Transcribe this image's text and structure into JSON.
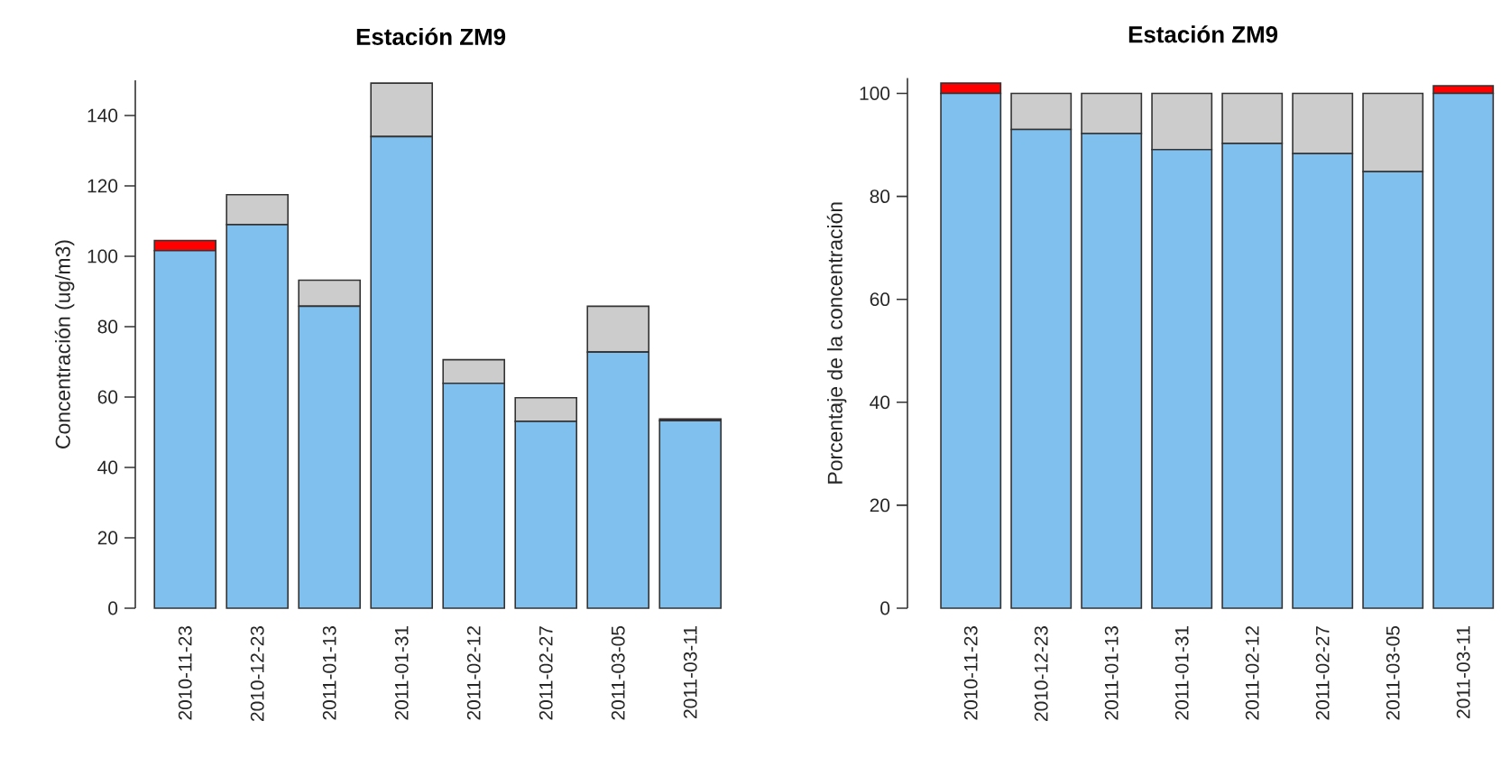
{
  "chart_data": [
    {
      "type": "bar",
      "stacked": true,
      "title": "Estación ZM9",
      "ylabel": "Concentración (ug/m3)",
      "categories": [
        "2010-11-23",
        "2010-12-23",
        "2011-01-13",
        "2011-01-31",
        "2011-02-12",
        "2011-02-27",
        "2011-03-05",
        "2011-03-11"
      ],
      "series": [
        {
          "color": "#80c0ee",
          "values": [
            101.6,
            109.0,
            85.8,
            134.0,
            63.9,
            53.1,
            72.8,
            53.3
          ]
        },
        {
          "color": "#cccccc",
          "values": [
            0,
            8.5,
            7.4,
            15.2,
            6.7,
            6.7,
            13.0,
            0
          ]
        },
        {
          "color": "#ff0000",
          "values": [
            2.9,
            0,
            0,
            0,
            0,
            0,
            0,
            0.5
          ]
        }
      ],
      "ylim": [
        0,
        150
      ],
      "yticks": [
        0,
        20,
        40,
        60,
        80,
        100,
        120,
        140
      ]
    },
    {
      "type": "bar",
      "stacked": true,
      "title": "Estación ZM9",
      "ylabel": "Porcentaje de la concentración",
      "categories": [
        "2010-11-23",
        "2010-12-23",
        "2011-01-13",
        "2011-01-31",
        "2011-02-12",
        "2011-02-27",
        "2011-03-05",
        "2011-03-11"
      ],
      "series": [
        {
          "color": "#80c0ee",
          "values": [
            100,
            93.0,
            92.2,
            89.1,
            90.3,
            88.3,
            84.8,
            100
          ]
        },
        {
          "color": "#cccccc",
          "values": [
            0,
            7.0,
            7.8,
            10.9,
            9.7,
            11.7,
            15.2,
            0
          ]
        },
        {
          "color": "#ff0000",
          "values": [
            2.0,
            0,
            0,
            0,
            0,
            0,
            0,
            1.5
          ]
        }
      ],
      "ylim": [
        0,
        103
      ],
      "yticks": [
        0,
        20,
        40,
        60,
        80,
        100
      ]
    }
  ]
}
